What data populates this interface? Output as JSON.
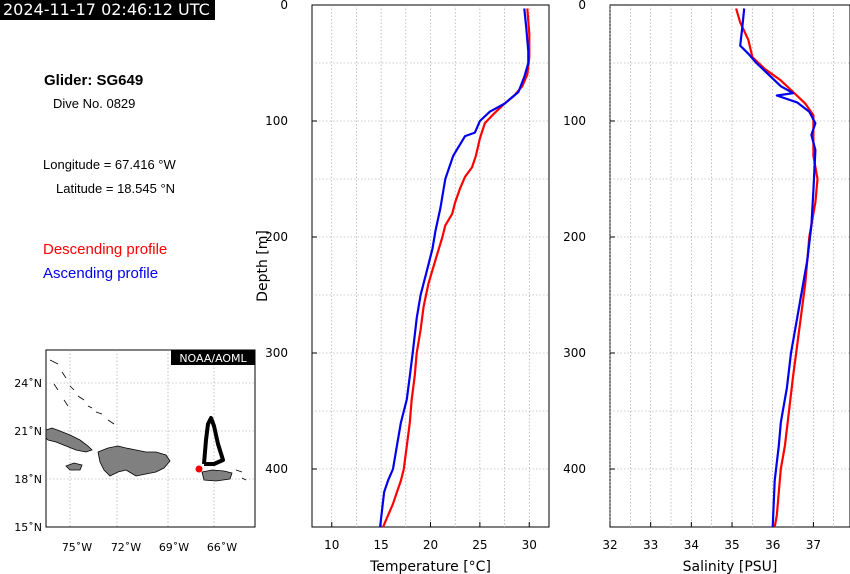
{
  "timestamp": "2024-11-17 02:46:12 UTC",
  "info": {
    "glider": "Glider: SG649",
    "dive": "Dive No. 0829",
    "longitude": "Longitude = 67.416 °W",
    "latitude": "Latitude = 18.545 °N"
  },
  "legend": {
    "descending": "Descending profile",
    "ascending": "Ascending profile",
    "descending_color": "#ff0000",
    "ascending_color": "#0000ee"
  },
  "map": {
    "badge": "NOAA/AOML",
    "lat_labels": [
      "24˚N",
      "21˚N",
      "18˚N",
      "15˚N"
    ],
    "lon_labels": [
      "75˚W",
      "72˚W",
      "69˚W",
      "66˚W"
    ],
    "glider_position": {
      "lon": -67.416,
      "lat": 18.545
    },
    "track_color": "#000000",
    "land_color": "#808080",
    "position_color": "#ff0000"
  },
  "chart_data": [
    {
      "type": "line",
      "xlabel": "Temperature [°C]",
      "ylabel": "Depth [m]",
      "xlim": [
        8,
        32
      ],
      "ylim": [
        450,
        0
      ],
      "xticks": [
        "10",
        "15",
        "20",
        "25",
        "30"
      ],
      "yticks": [
        "0",
        "100",
        "200",
        "300",
        "400"
      ],
      "grid": true,
      "series": [
        {
          "name": "Descending profile",
          "color": "#ff0000",
          "x": [
            29.8,
            30.0,
            30.0,
            29.8,
            29.3,
            28.5,
            27.5,
            26.5,
            25.5,
            25.0,
            24.6,
            24.2,
            23.5,
            23.0,
            22.5,
            22.2,
            21.5,
            21.2,
            20.5,
            19.8,
            19.3,
            19.0,
            18.6,
            18.4,
            18.1,
            17.9,
            17.6,
            17.3,
            17.0,
            16.6,
            16.2,
            15.7,
            15.2
          ],
          "y": [
            3,
            25,
            45,
            60,
            70,
            78,
            85,
            93,
            102,
            115,
            130,
            140,
            148,
            158,
            170,
            180,
            190,
            200,
            220,
            240,
            260,
            280,
            300,
            320,
            340,
            360,
            380,
            400,
            410,
            420,
            430,
            440,
            450
          ]
        },
        {
          "name": "Ascending profile",
          "color": "#0000ee",
          "x": [
            29.5,
            29.7,
            29.8,
            29.9,
            29.9,
            29.5,
            28.9,
            27.5,
            26.0,
            25.0,
            24.5,
            23.5,
            22.3,
            21.5,
            21.0,
            20.5,
            20.2,
            19.6,
            19.0,
            18.6,
            18.2,
            17.9,
            17.6,
            17.0,
            16.6,
            16.2,
            15.7,
            15.3,
            14.9
          ],
          "y": [
            3,
            20,
            30,
            40,
            50,
            62,
            75,
            85,
            92,
            100,
            110,
            113,
            130,
            150,
            175,
            195,
            210,
            230,
            250,
            270,
            300,
            320,
            340,
            360,
            380,
            400,
            410,
            420,
            450
          ]
        }
      ]
    },
    {
      "type": "line",
      "xlabel": "Salinity [PSU]",
      "ylabel": "",
      "xlim": [
        32,
        37.9
      ],
      "ylim": [
        450,
        0
      ],
      "xticks": [
        "32",
        "33",
        "34",
        "35",
        "36",
        "37"
      ],
      "yticks": [
        "0",
        "100",
        "200",
        "300",
        "400"
      ],
      "grid": true,
      "series": [
        {
          "name": "Descending profile",
          "color": "#ff0000",
          "x": [
            35.1,
            35.2,
            35.4,
            35.5,
            35.8,
            36.2,
            36.5,
            36.8,
            37.0,
            37.0,
            37.0,
            37.1,
            37.05,
            36.9,
            36.8,
            36.65,
            36.5,
            36.4,
            36.3,
            36.2,
            36.15,
            36.1,
            36.05
          ],
          "y": [
            3,
            15,
            30,
            45,
            55,
            65,
            75,
            85,
            95,
            110,
            130,
            150,
            170,
            200,
            240,
            280,
            320,
            350,
            380,
            400,
            420,
            440,
            450
          ]
        },
        {
          "name": "Ascending profile",
          "color": "#0000ee",
          "x": [
            35.3,
            35.25,
            35.2,
            35.4,
            35.6,
            35.9,
            36.2,
            36.5,
            36.1,
            36.6,
            36.9,
            37.05,
            36.95,
            37.05,
            37.0,
            36.95,
            36.85,
            36.7,
            36.55,
            36.45,
            36.35,
            36.2,
            36.15,
            36.05,
            36.0
          ],
          "y": [
            3,
            20,
            35,
            42,
            50,
            60,
            70,
            76,
            78,
            84,
            92,
            102,
            112,
            125,
            160,
            190,
            220,
            250,
            280,
            300,
            330,
            360,
            380,
            410,
            450
          ]
        }
      ]
    }
  ]
}
